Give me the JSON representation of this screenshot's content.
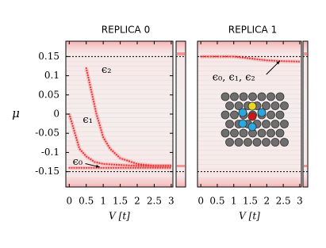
{
  "chart_data": [
    {
      "type": "line",
      "title": "REPLICA 0",
      "xlabel": "V [t]",
      "ylabel": "μ",
      "xlim": [
        -0.1,
        3.05
      ],
      "ylim": [
        -0.19,
        0.19
      ],
      "xticks": [
        0,
        0.5,
        1,
        1.5,
        2,
        2.5,
        3
      ],
      "yticks": [
        0.15,
        0.1,
        0.05,
        0,
        -0.05,
        -0.1,
        -0.15
      ],
      "hlines": [
        0.15,
        -0.15
      ],
      "annotations": [
        "ϵ₂",
        "ϵ₁",
        "ϵ₀"
      ],
      "series": [
        {
          "name": "ϵ₂",
          "color": "#e8383a",
          "x": [
            0.5,
            0.6,
            0.7,
            0.8,
            0.9,
            1.0,
            1.2,
            1.5,
            2.0,
            2.5,
            3.0
          ],
          "values": [
            0.12,
            0.08,
            0.04,
            0.0,
            -0.03,
            -0.06,
            -0.09,
            -0.115,
            -0.13,
            -0.135,
            -0.135
          ]
        },
        {
          "name": "ϵ₁",
          "color": "#e8383a",
          "x": [
            0,
            0.1,
            0.2,
            0.3,
            0.5,
            0.75,
            1.0,
            2.0,
            3.0
          ],
          "values": [
            0,
            -0.03,
            -0.06,
            -0.09,
            -0.11,
            -0.125,
            -0.13,
            -0.135,
            -0.135
          ]
        },
        {
          "name": "ϵ₀",
          "color": "#e8383a",
          "x": [
            0,
            1.0,
            2.0,
            3.0
          ],
          "values": [
            -0.14,
            -0.14,
            -0.14,
            -0.14
          ]
        }
      ]
    },
    {
      "type": "line",
      "title": "REPLICA 1",
      "xlabel": "V [t]",
      "xlim": [
        -0.1,
        3.05
      ],
      "ylim": [
        -0.19,
        0.19
      ],
      "xticks": [
        0,
        0.5,
        1,
        1.5,
        2,
        2.5,
        3
      ],
      "hlines": [
        0.15,
        -0.15
      ],
      "annotations": [
        "ϵ₀, ϵ₁, ϵ₂"
      ],
      "series": [
        {
          "name": "ϵ₀, ϵ₁, ϵ₂",
          "color": "#e8383a",
          "x": [
            0,
            1.0,
            1.5,
            2.0,
            2.5,
            3.0
          ],
          "values": [
            0.15,
            0.15,
            0.145,
            0.14,
            0.138,
            0.137
          ]
        }
      ]
    }
  ]
}
